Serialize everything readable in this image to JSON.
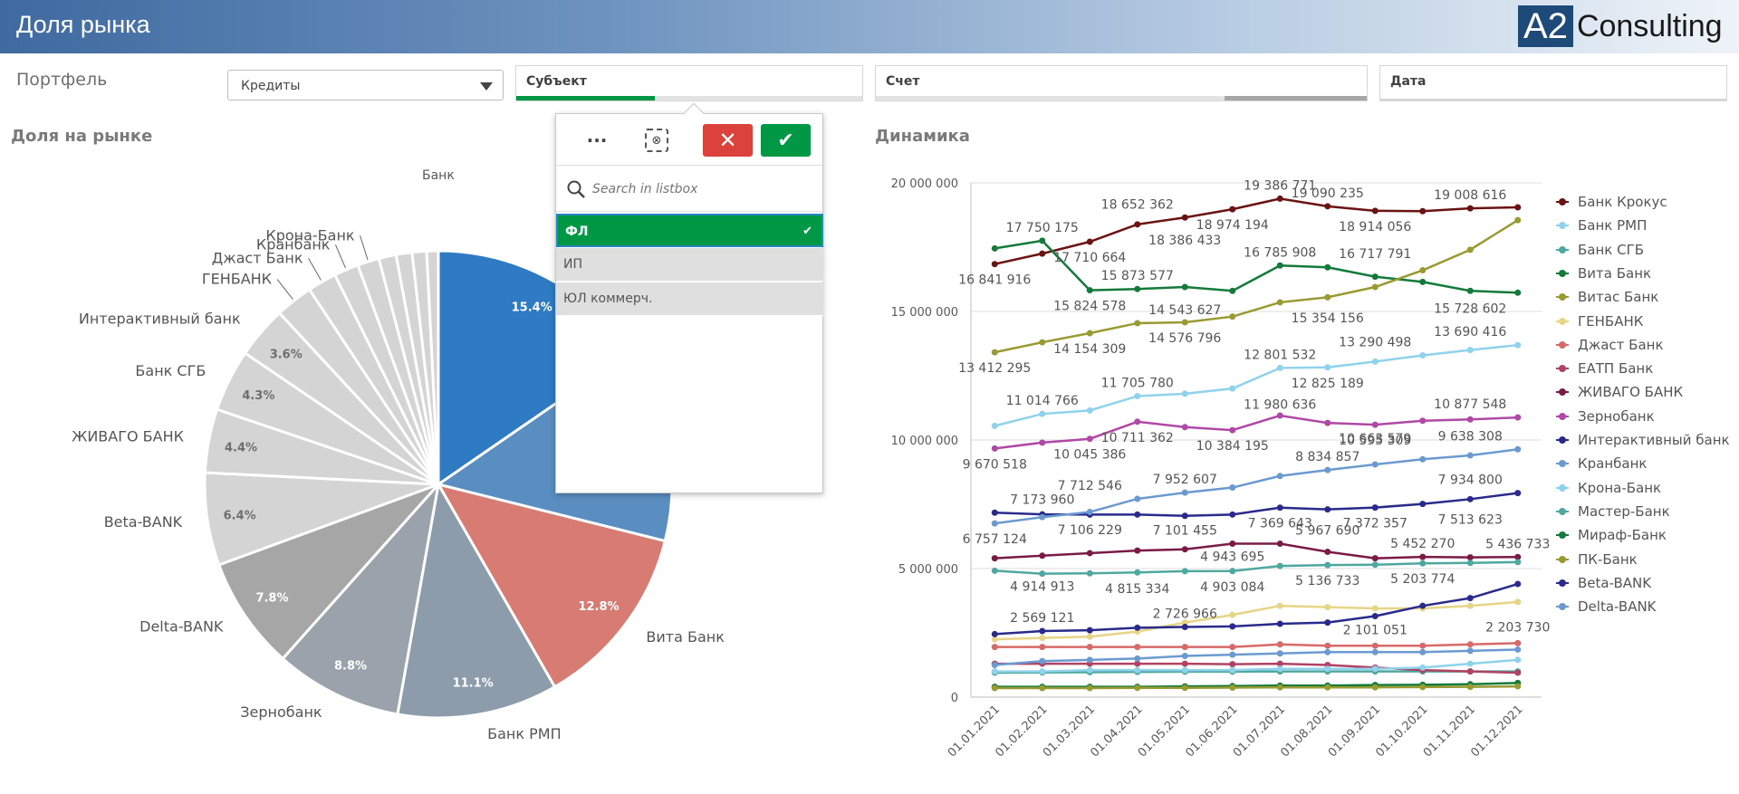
{
  "header": {
    "title": "Доля рынка",
    "logo_a2": "A2",
    "logo_text": "Consulting"
  },
  "filters": {
    "portfolio_label": "Портфель",
    "portfolio_value": "Кредиты",
    "subject_label": "Субъект",
    "account_label": "Счет",
    "date_label": "Дата"
  },
  "popup": {
    "search_placeholder": "Search in listbox",
    "dots_label": "···",
    "items": [
      {
        "label": "ФЛ",
        "state": "selected"
      },
      {
        "label": "ИП",
        "state": "alternative"
      },
      {
        "label": "ЮЛ коммерч.",
        "state": "alternative"
      }
    ]
  },
  "sections": {
    "market_share_title": "Доля на рынке",
    "dynamics_title": "Динамика"
  },
  "chart_data": [
    {
      "type": "pie",
      "title": "Доля на рынке",
      "legend_title": "Банк",
      "slices": [
        {
          "label": "",
          "value": 15.4,
          "value_label": "15.4%",
          "color": "#2e7bc4"
        },
        {
          "label": "",
          "value": 13.5,
          "value_label": "",
          "color": "#5a8ec0"
        },
        {
          "label": "Вита Банк",
          "value": 12.8,
          "value_label": "12.8%",
          "color": "#d87c73"
        },
        {
          "label": "Банк РМП",
          "value": 11.1,
          "value_label": "11.1%",
          "color": "#8c9cab"
        },
        {
          "label": "Зернобанк",
          "value": 8.8,
          "value_label": "8.8%",
          "color": "#9aa3ab"
        },
        {
          "label": "Delta-BANK",
          "value": 7.8,
          "value_label": "7.8%",
          "color": "#a6a6a6"
        },
        {
          "label": "Beta-BANK",
          "value": 6.4,
          "value_label": "6.4%",
          "color": "#d4d4d4"
        },
        {
          "label": "ЖИВАГО БАНК",
          "value": 4.4,
          "value_label": "4.4%",
          "color": "#d4d4d4"
        },
        {
          "label": "Банк СГБ",
          "value": 4.3,
          "value_label": "4.3%",
          "color": "#d4d4d4"
        },
        {
          "label": "Интерактивный банк",
          "value": 3.6,
          "value_label": "3.6%",
          "color": "#d4d4d4"
        },
        {
          "label": "ГЕНБАНК",
          "value": 2.6,
          "value_label": "",
          "color": "#d4d4d4"
        },
        {
          "label": "Джаст Банк",
          "value": 2.0,
          "value_label": "",
          "color": "#d4d4d4"
        },
        {
          "label": "Кранбанк",
          "value": 1.7,
          "value_label": "",
          "color": "#d4d4d4"
        },
        {
          "label": "Крона-Банк",
          "value": 1.5,
          "value_label": "",
          "color": "#d4d4d4"
        },
        {
          "label": "",
          "value": 1.2,
          "value_label": "",
          "color": "#d4d4d4"
        },
        {
          "label": "",
          "value": 1.1,
          "value_label": "",
          "color": "#d4d4d4"
        },
        {
          "label": "",
          "value": 1.0,
          "value_label": "",
          "color": "#d4d4d4"
        },
        {
          "label": "",
          "value": 0.8,
          "value_label": "",
          "color": "#d4d4d4"
        }
      ]
    },
    {
      "type": "line",
      "title": "Динамика",
      "categories": [
        "01.01.2021",
        "01.02.2021",
        "01.03.2021",
        "01.04.2021",
        "01.05.2021",
        "01.06.2021",
        "01.07.2021",
        "01.08.2021",
        "01.09.2021",
        "01.10.2021",
        "01.11.2021",
        "01.12.2021"
      ],
      "yticks": [
        "0",
        "5 000 000",
        "10 000 000",
        "15 000 000",
        "20 000 000"
      ],
      "ylim": [
        0,
        20000000
      ],
      "grid": true,
      "legend_position": "right",
      "series": [
        {
          "name": "Банк Крокус",
          "color": "#6b1212",
          "values": [
            16841916,
            17250000,
            17710664,
            18386433,
            18652362,
            18974194,
            19386771,
            19090235,
            18914056,
            18900000,
            19008616,
            19050000
          ]
        },
        {
          "name": "Банк РМП",
          "color": "#8fd2ec",
          "values": [
            10550000,
            11014766,
            11150000,
            11705780,
            11800000,
            12001532,
            12801532,
            12825189,
            13050000,
            13290498,
            13500000,
            13690416
          ]
        },
        {
          "name": "Банк СГБ",
          "color": "#4fa8a0",
          "values": [
            950000,
            960000,
            970000,
            980000,
            990000,
            990000,
            1000000,
            1000000,
            1000000,
            1000000,
            1000000,
            1000000
          ]
        },
        {
          "name": "Вита Банк",
          "color": "#137a3a",
          "values": [
            17450000,
            17750175,
            15824578,
            15873577,
            15950000,
            15800000,
            16785908,
            16717791,
            16350000,
            16150000,
            15800000,
            15728602
          ]
        },
        {
          "name": "Витас Банк",
          "color": "#999a32",
          "values": [
            13412295,
            13800000,
            14154309,
            14543627,
            14576796,
            14800000,
            15354156,
            15550000,
            15950000,
            16600000,
            17400000,
            18550000
          ]
        },
        {
          "name": "ГЕНБАНК",
          "color": "#e6d586",
          "values": [
            2250000,
            2300000,
            2350000,
            2550000,
            2900000,
            3200000,
            3550000,
            3500000,
            3450000,
            3450000,
            3550000,
            3700000
          ]
        },
        {
          "name": "Джаст Банк",
          "color": "#d86969",
          "values": [
            1950000,
            1950000,
            1950000,
            1950000,
            1950000,
            1950000,
            2050000,
            2000000,
            2000000,
            2000000,
            2050000,
            2100000
          ]
        },
        {
          "name": "ЕАТП Банк",
          "color": "#b04263",
          "values": [
            1300000,
            1300000,
            1300000,
            1300000,
            1300000,
            1280000,
            1300000,
            1250000,
            1150000,
            1050000,
            1000000,
            950000
          ]
        },
        {
          "name": "ЖИВАГО БАНК",
          "color": "#7a1b47",
          "values": [
            5400000,
            5500000,
            5600000,
            5700000,
            5750000,
            5967690,
            5967690,
            5650000,
            5400000,
            5452270,
            5436733,
            5450000
          ]
        },
        {
          "name": "Зернобанк",
          "color": "#b049a6",
          "values": [
            9670518,
            9900000,
            10045386,
            10711362,
            10500000,
            10384195,
            10950000,
            10663579,
            10595309,
            10750000,
            10800000,
            10877548
          ]
        },
        {
          "name": "Интерактивный банк",
          "color": "#2a2a8c",
          "values": [
            7173960,
            7106229,
            7100000,
            7101455,
            7050000,
            7101455,
            7369643,
            7300000,
            7372357,
            7513623,
            7700000,
            7934800
          ]
        },
        {
          "name": "Кранбанк",
          "color": "#6b9ad1",
          "values": [
            6757124,
            7000000,
            7200000,
            7712546,
            7952607,
            8150000,
            8600000,
            8834857,
            9050000,
            9250000,
            9400000,
            9638308
          ]
        },
        {
          "name": "Крона-Банк",
          "color": "#8fd2ec",
          "values": [
            1000000,
            1000000,
            1050000,
            1050000,
            1050000,
            1050000,
            1100000,
            1100000,
            1100000,
            1150000,
            1300000,
            1450000
          ]
        },
        {
          "name": "Мастер-Банк",
          "color": "#4fa8a0",
          "values": [
            4914913,
            4800000,
            4815334,
            4850000,
            4900000,
            4903084,
            5100000,
            5136733,
            5150000,
            5203774,
            5220000,
            5250000
          ]
        },
        {
          "name": "Мираф-Банк",
          "color": "#137a3a",
          "values": [
            400000,
            400000,
            400000,
            400000,
            420000,
            430000,
            450000,
            450000,
            470000,
            480000,
            500000,
            550000
          ]
        },
        {
          "name": "ПК-Банк",
          "color": "#999a32",
          "values": [
            350000,
            350000,
            350000,
            360000,
            360000,
            370000,
            380000,
            380000,
            380000,
            390000,
            400000,
            420000
          ]
        },
        {
          "name": "Beta-BANK",
          "color": "#2a2a8c",
          "values": [
            2450000,
            2569121,
            2600000,
            2700000,
            2726966,
            2750000,
            2850000,
            2900000,
            3150000,
            3550000,
            3850000,
            4400000
          ]
        },
        {
          "name": "Delta-BANK",
          "color": "#6b9ad1",
          "values": [
            1250000,
            1400000,
            1450000,
            1500000,
            1600000,
            1650000,
            1700000,
            1750000,
            1750000,
            1750000,
            1800000,
            1850000
          ]
        }
      ],
      "data_labels": [
        {
          "x": 1,
          "y": 17750175,
          "text": "17 750 175",
          "pos": "above"
        },
        {
          "x": 0,
          "y": 16841916,
          "text": "16 841 916",
          "pos": "below"
        },
        {
          "x": 2,
          "y": 17710664,
          "text": "17 710 664",
          "pos": "below"
        },
        {
          "x": 3,
          "y": 18652362,
          "text": "18 652 362",
          "pos": "above"
        },
        {
          "x": 4,
          "y": 18386433,
          "text": "18 386 433",
          "pos": "below"
        },
        {
          "x": 6,
          "y": 19386771,
          "text": "19 386 771",
          "pos": "above"
        },
        {
          "x": 5,
          "y": 18974194,
          "text": "18 974 194",
          "pos": "below"
        },
        {
          "x": 7,
          "y": 19090235,
          "text": "19 090 235",
          "pos": "above"
        },
        {
          "x": 8,
          "y": 18914056,
          "text": "18 914 056",
          "pos": "below"
        },
        {
          "x": 10,
          "y": 19008616,
          "text": "19 008 616",
          "pos": "above"
        },
        {
          "x": 3,
          "y": 15873577,
          "text": "15 873 577",
          "pos": "above"
        },
        {
          "x": 2,
          "y": 15824578,
          "text": "15 824 578",
          "pos": "below"
        },
        {
          "x": 6,
          "y": 16785908,
          "text": "16 785 908",
          "pos": "above"
        },
        {
          "x": 8,
          "y": 16717791,
          "text": "16 717 791",
          "pos": "above"
        },
        {
          "x": 7,
          "y": 15354156,
          "text": "15 354 156",
          "pos": "below"
        },
        {
          "x": 10,
          "y": 15728602,
          "text": "15 728 602",
          "pos": "below"
        },
        {
          "x": 4,
          "y": 14543627,
          "text": "14 543 627",
          "pos": "above"
        },
        {
          "x": 2,
          "y": 14154309,
          "text": "14 154 309",
          "pos": "below"
        },
        {
          "x": 4,
          "y": 14576796,
          "text": "14 576 796",
          "pos": "below"
        },
        {
          "x": 0,
          "y": 13412295,
          "text": "13 412 295",
          "pos": "below"
        },
        {
          "x": 6,
          "y": 12801532,
          "text": "12 801 532",
          "pos": "above"
        },
        {
          "x": 8,
          "y": 13290498,
          "text": "13 290 498",
          "pos": "above"
        },
        {
          "x": 7,
          "y": 12825189,
          "text": "12 825 189",
          "pos": "below"
        },
        {
          "x": 10,
          "y": 13690416,
          "text": "13 690 416",
          "pos": "above"
        },
        {
          "x": 1,
          "y": 11014766,
          "text": "11 014 766",
          "pos": "above"
        },
        {
          "x": 3,
          "y": 11705780,
          "text": "11 705 780",
          "pos": "above"
        },
        {
          "x": 6,
          "y": 11980636,
          "text": "11 980 636",
          "pos": "below"
        },
        {
          "x": 3,
          "y": 10711362,
          "text": "10 711 362",
          "pos": "below"
        },
        {
          "x": 8,
          "y": 10663579,
          "text": "10 663 579",
          "pos": "below"
        },
        {
          "x": 10,
          "y": 10877548,
          "text": "10 877 548",
          "pos": "above"
        },
        {
          "x": 0,
          "y": 9670518,
          "text": "9 670 518",
          "pos": "below"
        },
        {
          "x": 2,
          "y": 10045386,
          "text": "10 045 386",
          "pos": "below"
        },
        {
          "x": 5,
          "y": 10384195,
          "text": "10 384 195",
          "pos": "below"
        },
        {
          "x": 8,
          "y": 10595309,
          "text": "10 595 309",
          "pos": "below"
        },
        {
          "x": 7,
          "y": 8834857,
          "text": "8 834 857",
          "pos": "above"
        },
        {
          "x": 10,
          "y": 9638308,
          "text": "9 638 308",
          "pos": "above"
        },
        {
          "x": 4,
          "y": 7952607,
          "text": "7 952 607",
          "pos": "above"
        },
        {
          "x": 2,
          "y": 7712546,
          "text": "7 712 546",
          "pos": "above"
        },
        {
          "x": 1,
          "y": 7173960,
          "text": "7 173 960",
          "pos": "above"
        },
        {
          "x": 10,
          "y": 7934800,
          "text": "7 934 800",
          "pos": "above"
        },
        {
          "x": 2,
          "y": 7106229,
          "text": "7 106 229",
          "pos": "below"
        },
        {
          "x": 4,
          "y": 7101455,
          "text": "7 101 455",
          "pos": "below"
        },
        {
          "x": 6,
          "y": 7369643,
          "text": "7 369 643",
          "pos": "below"
        },
        {
          "x": 8,
          "y": 7372357,
          "text": "7 372 357",
          "pos": "below"
        },
        {
          "x": 10,
          "y": 7513623,
          "text": "7 513 623",
          "pos": "below"
        },
        {
          "x": 0,
          "y": 6757124,
          "text": "6 757 124",
          "pos": "below"
        },
        {
          "x": 7,
          "y": 5967690,
          "text": "5 967 690",
          "pos": "above"
        },
        {
          "x": 5,
          "y": 4943695,
          "text": "4 943 695",
          "pos": "above"
        },
        {
          "x": 9,
          "y": 5452270,
          "text": "5 452 270",
          "pos": "above"
        },
        {
          "x": 11,
          "y": 5436733,
          "text": "5 436 733",
          "pos": "above"
        },
        {
          "x": 1,
          "y": 4914913,
          "text": "4 914 913",
          "pos": "below"
        },
        {
          "x": 3,
          "y": 4815334,
          "text": "4 815 334",
          "pos": "below"
        },
        {
          "x": 5,
          "y": 4903084,
          "text": "4 903 084",
          "pos": "below"
        },
        {
          "x": 7,
          "y": 5136733,
          "text": "5 136 733",
          "pos": "below"
        },
        {
          "x": 9,
          "y": 5203774,
          "text": "5 203 774",
          "pos": "below"
        },
        {
          "x": 1,
          "y": 2569121,
          "text": "2 569 121",
          "pos": "above"
        },
        {
          "x": 4,
          "y": 2726966,
          "text": "2 726 966",
          "pos": "above"
        },
        {
          "x": 8,
          "y": 2101051,
          "text": "2 101 051",
          "pos": "above"
        },
        {
          "x": 11,
          "y": 2203730,
          "text": "2 203 730",
          "pos": "above"
        }
      ]
    }
  ]
}
